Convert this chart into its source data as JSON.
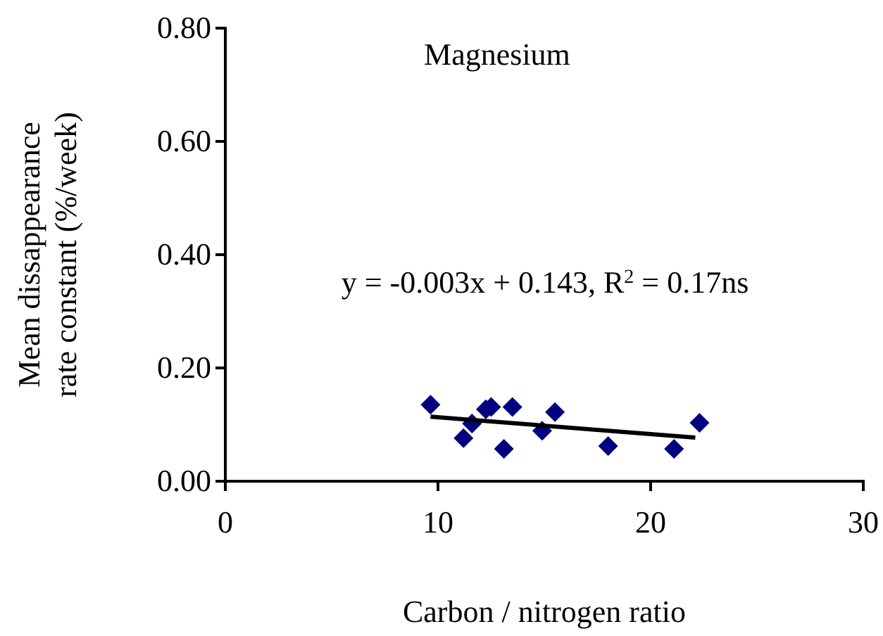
{
  "chart_data": {
    "type": "scatter",
    "xlabel": "Carbon / nitrogen ratio",
    "ylabel": "Mean dissappearance rate constant (%/week)",
    "annotations": [
      "Magnesium",
      "y = -0.003x + 0.143, R$^{2}$ = 0.17ns"
    ],
    "xlim": [
      0,
      30
    ],
    "xticks": [
      0,
      10,
      20,
      30
    ],
    "ylim": [
      0,
      0.8
    ],
    "yticks": [
      {
        "value": 0,
        "label": "0.00"
      },
      {
        "value": 0.2,
        "label": "0.20"
      },
      {
        "value": 0.4,
        "label": "0.40"
      },
      {
        "value": 0.6,
        "label": "0.60"
      },
      {
        "value": 0.8,
        "label": "0.80"
      }
    ],
    "grid": false,
    "marker": "diamond",
    "series": [
      {
        "color": "#000080",
        "x": [
          9.65,
          11.2,
          11.6,
          12.25,
          12.5,
          13.1,
          13.5,
          14.9,
          15.5,
          18.0,
          21.1,
          22.3
        ],
        "values": [
          0.135,
          0.076,
          0.102,
          0.127,
          0.131,
          0.057,
          0.131,
          0.089,
          0.122,
          0.062,
          0.057,
          0.103
        ]
      },
      {
        "type": "line",
        "color": "#000000",
        "line_style": "solid",
        "marker": "none",
        "x": [
          9.65,
          22.1
        ],
        "values": [
          0.114,
          0.077
        ]
      }
    ]
  }
}
